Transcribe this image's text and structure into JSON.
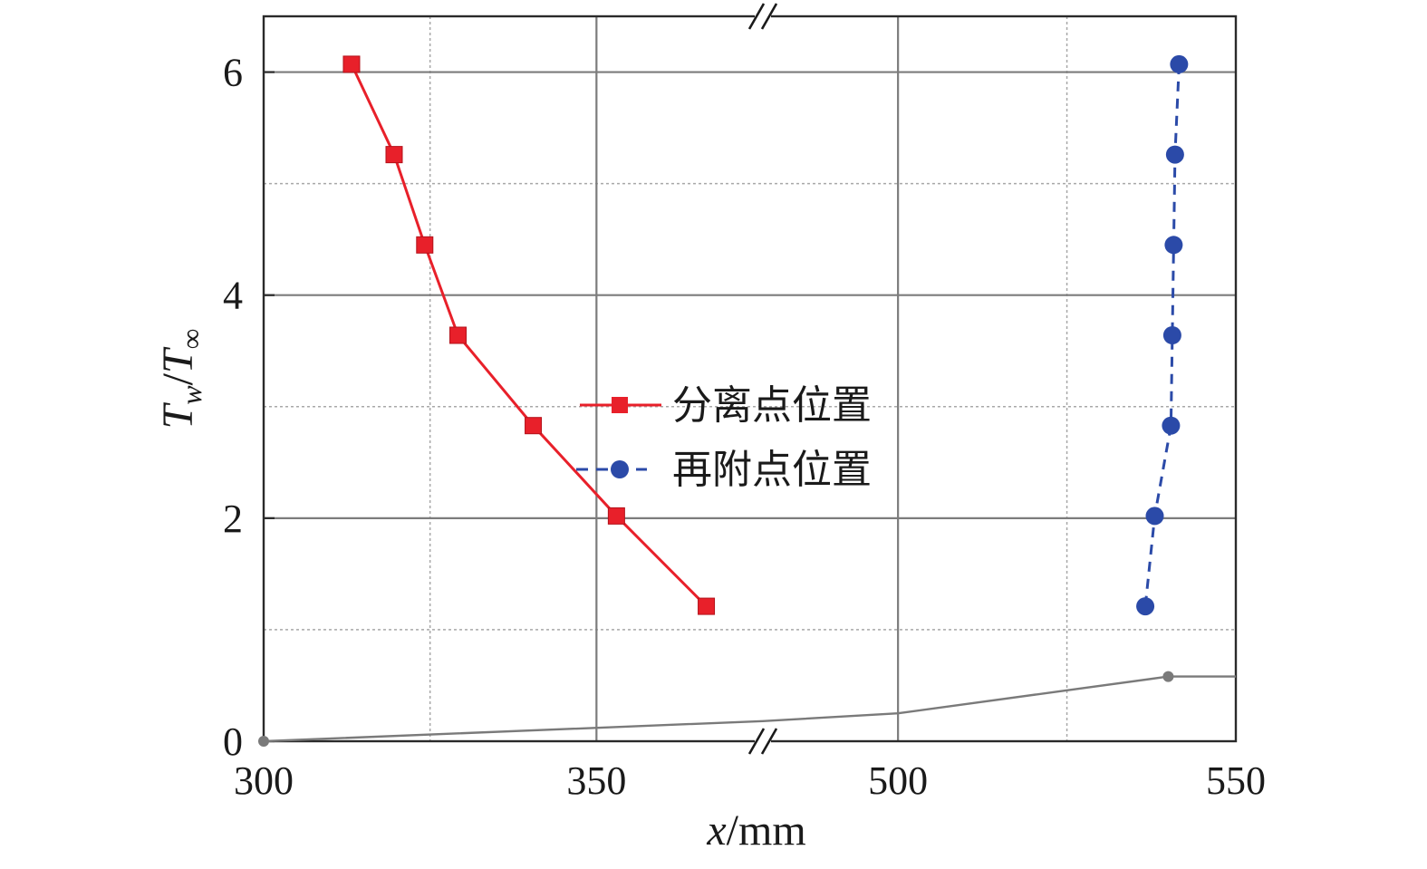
{
  "chart_data": {
    "type": "line",
    "xlabel": {
      "var": "x",
      "unit": "/mm"
    },
    "ylabel": {
      "main": "T",
      "sub_w": "w",
      "slash": "/",
      "main2": "T",
      "sub_inf": "∞"
    },
    "x_segments": [
      {
        "range": [
          300,
          375
        ],
        "ticks": [
          300,
          350
        ],
        "tick_labels": [
          "300",
          "350"
        ]
      },
      {
        "range": [
          480,
          550
        ],
        "ticks": [
          500,
          550
        ],
        "tick_labels": [
          "500",
          "550"
        ]
      }
    ],
    "x_break": "//",
    "ylim": [
      0,
      6.5
    ],
    "yticks": [
      0,
      2,
      4,
      6
    ],
    "ytick_labels": [
      "0",
      "2",
      "4",
      "6"
    ],
    "grid": true,
    "legend_position": "center",
    "series": [
      {
        "name": "分离点位置",
        "color": "#e8202a",
        "marker": "square",
        "line": "solid",
        "points": [
          {
            "x": 313.2,
            "y": 6.07
          },
          {
            "x": 319.6,
            "y": 5.26
          },
          {
            "x": 324.2,
            "y": 4.45
          },
          {
            "x": 329.2,
            "y": 3.64
          },
          {
            "x": 340.5,
            "y": 2.83
          },
          {
            "x": 353.0,
            "y": 2.02
          },
          {
            "x": 366.5,
            "y": 1.21
          }
        ]
      },
      {
        "name": "再附点位置",
        "color": "#2b4aa8",
        "marker": "circle",
        "line": "dashed",
        "points": [
          {
            "x": 541.6,
            "y": 6.07
          },
          {
            "x": 541.0,
            "y": 5.26
          },
          {
            "x": 540.8,
            "y": 4.45
          },
          {
            "x": 540.6,
            "y": 3.64
          },
          {
            "x": 540.4,
            "y": 2.83
          },
          {
            "x": 538.0,
            "y": 2.02
          },
          {
            "x": 536.6,
            "y": 1.21
          }
        ]
      },
      {
        "name": "",
        "color": "#7a7a7a",
        "marker": "none",
        "line": "solid",
        "points": [
          {
            "x": 300,
            "y": 0
          },
          {
            "x": 375,
            "y": 0.18
          },
          {
            "x": 500,
            "y": 0.25
          },
          {
            "x": 540,
            "y": 0.58
          },
          {
            "x": 550,
            "y": 0.58
          }
        ],
        "end_markers": [
          {
            "x": 300,
            "y": 0
          },
          {
            "x": 540,
            "y": 0.58
          }
        ]
      }
    ]
  }
}
